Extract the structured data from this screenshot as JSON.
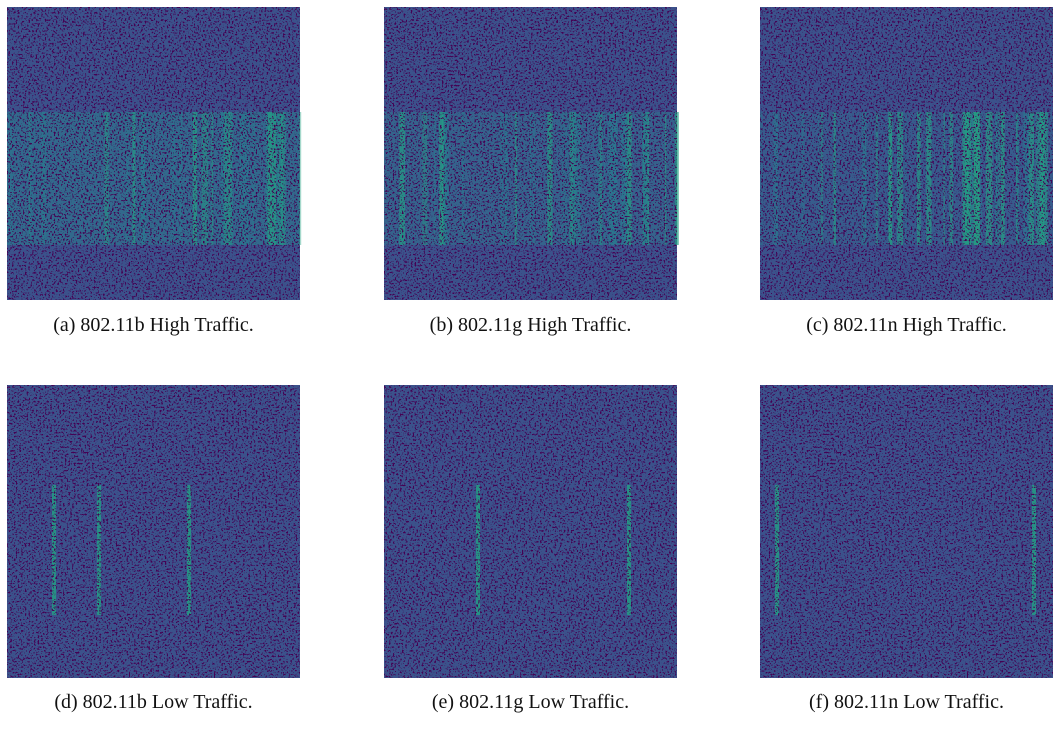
{
  "figure": {
    "panels": [
      {
        "caption": "(a) 802.11b High Traffic."
      },
      {
        "caption": "(b) 802.11g High Traffic."
      },
      {
        "caption": "(c) 802.11n High Traffic."
      },
      {
        "caption": "(d) 802.11b Low Traffic."
      },
      {
        "caption": "(e) 802.11g Low Traffic."
      },
      {
        "caption": "(f) 802.11n Low Traffic."
      }
    ]
  }
}
